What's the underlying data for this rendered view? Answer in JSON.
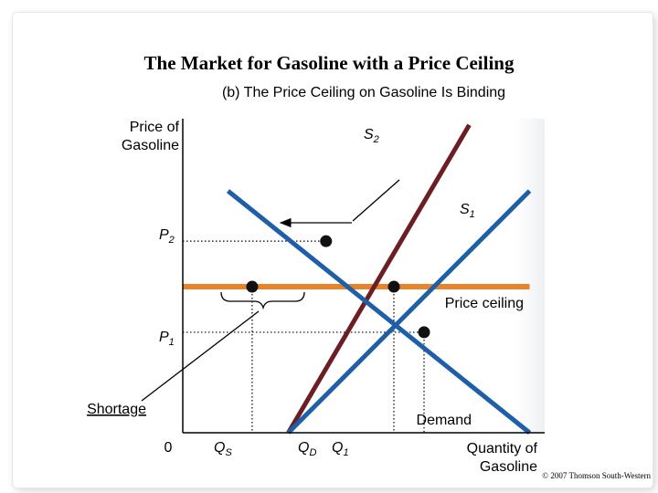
{
  "chart_data": {
    "type": "line",
    "title": "The Market for Gasoline with a Price Ceiling",
    "subtitle": "(b) The Price Ceiling on Gasoline Is Binding",
    "ylabel": [
      "Price of",
      "Gasoline"
    ],
    "xlabel": [
      "Quantity of",
      "Gasoline"
    ],
    "origin_label": "0",
    "price_ticks": [
      {
        "name": "P",
        "sub": "2"
      },
      {
        "name": "P",
        "sub": "1"
      }
    ],
    "quantity_ticks": [
      {
        "name": "Q",
        "sub": "S"
      },
      {
        "name": "Q",
        "sub": "D"
      },
      {
        "name": "Q",
        "sub": "1"
      }
    ],
    "series": [
      {
        "name": "S",
        "sub": "2",
        "kind": "supply",
        "color": "#6b1f24",
        "x": [
          35,
          95
        ],
        "y": [
          0,
          98
        ]
      },
      {
        "name": "S",
        "sub": "1",
        "kind": "supply",
        "color": "#1f5fa8",
        "x": [
          35,
          115
        ],
        "y": [
          0,
          77
        ]
      },
      {
        "name": "Demand",
        "kind": "demand",
        "color": "#1f5fa8",
        "x": [
          15,
          115
        ],
        "y": [
          77,
          0
        ]
      },
      {
        "name": "Price ceiling",
        "kind": "ceiling",
        "color": "#e8832a",
        "x": [
          0,
          115
        ],
        "y": [
          46.5,
          46.5
        ]
      }
    ],
    "points": [
      {
        "id": "new-equilibrium",
        "x": 47.5,
        "y": 61
      },
      {
        "id": "qs-at-ceiling",
        "x": 23,
        "y": 46.5
      },
      {
        "id": "qd-at-ceiling",
        "x": 70,
        "y": 46.5
      },
      {
        "id": "original-equilibrium",
        "x": 80,
        "y": 32
      }
    ],
    "shortage_label": "Shortage",
    "shift_arrow": {
      "from_label": "S1",
      "to_label": "S2",
      "direction": "left"
    },
    "xlim": [
      0,
      120
    ],
    "ylim": [
      0,
      100
    ],
    "grid": false,
    "colors": {
      "ceiling": "#e8832a",
      "s1_demand": "#1f5fa8",
      "s2": "#6b1f24"
    }
  },
  "copyright": "© 2007 Thomson South-Western"
}
